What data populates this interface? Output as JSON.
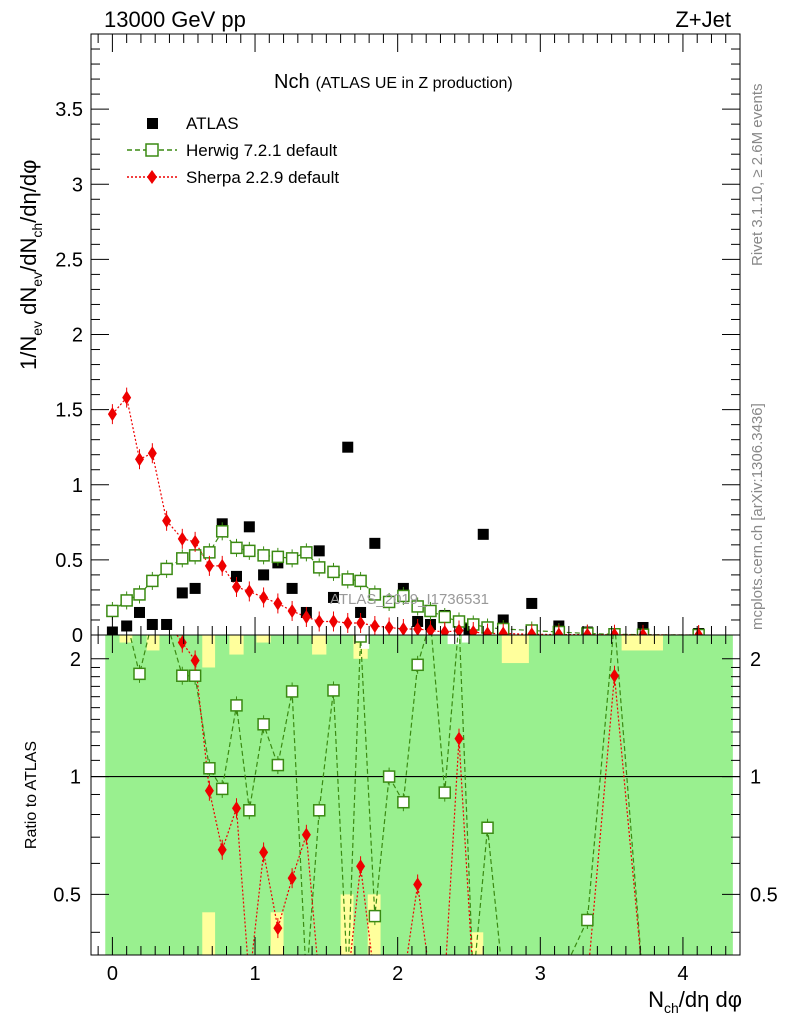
{
  "header": {
    "left": "13000 GeV pp",
    "right": "Z+Jet"
  },
  "side": {
    "rivet": "Rivet 3.1.10, ≥ 2.6M events",
    "mcplots": "mcplots.cern.ch [arXiv:1306.3436]"
  },
  "colors": {
    "atlas": "#000000",
    "herwig": "#3a8a12",
    "sherpa": "#ee0000",
    "band_green": "#99f08f",
    "band_yellow": "#ffff9c"
  },
  "chart_data": [
    {
      "type": "scatter",
      "title": "Nch",
      "subtitle": "(ATLAS UE in Z production)",
      "watermark": "ATLAS_2019_I1736531",
      "xlabel": "N_ch/dη dφ",
      "ylabel": "1/N_ev dN_ev/dN_ch/dη/dφ",
      "xlim": [
        -0.15,
        4.4
      ],
      "ylim": [
        0,
        4.0
      ],
      "yticks": [
        "0",
        "0.5",
        "1",
        "1.5",
        "2",
        "2.5",
        "3",
        "3.5"
      ],
      "xticks": [
        "0",
        "1",
        "2",
        "3",
        "4"
      ],
      "legend": [
        "ATLAS",
        "Herwig 7.2.1 default",
        "Sherpa 2.2.9 default"
      ],
      "series": [
        {
          "name": "ATLAS",
          "x": [
            0.0,
            0.1,
            0.19,
            0.28,
            0.38,
            0.49,
            0.58,
            0.68,
            0.77,
            0.87,
            0.96,
            1.06,
            1.16,
            1.26,
            1.36,
            1.45,
            1.55,
            1.65,
            1.74,
            1.84,
            1.94,
            2.04,
            2.14,
            2.23,
            2.33,
            2.5,
            2.6,
            2.74,
            2.94,
            3.13,
            3.33,
            3.52,
            3.72,
            4.11
          ],
          "values": [
            0.02,
            0.06,
            0.15,
            0.07,
            0.07,
            0.28,
            0.31,
            0.55,
            0.74,
            0.39,
            0.72,
            0.4,
            0.48,
            0.31,
            0.15,
            0.56,
            0.25,
            1.25,
            0.15,
            0.61,
            0.22,
            0.31,
            0.09,
            0.07,
            0.13,
            0.04,
            0.67,
            0.1,
            0.21,
            0.06,
            0.02,
            0.01,
            0.05,
            0.01
          ]
        },
        {
          "name": "Herwig 7.2.1 default",
          "x": [
            0.0,
            0.1,
            0.19,
            0.28,
            0.38,
            0.49,
            0.58,
            0.68,
            0.77,
            0.87,
            0.96,
            1.06,
            1.16,
            1.26,
            1.36,
            1.45,
            1.55,
            1.65,
            1.74,
            1.84,
            1.94,
            2.04,
            2.14,
            2.23,
            2.33,
            2.43,
            2.53,
            2.63,
            2.74,
            2.94,
            3.13,
            3.33,
            3.52,
            3.72,
            4.11
          ],
          "values": [
            0.16,
            0.23,
            0.27,
            0.36,
            0.44,
            0.51,
            0.53,
            0.55,
            0.69,
            0.58,
            0.56,
            0.53,
            0.52,
            0.51,
            0.55,
            0.45,
            0.42,
            0.37,
            0.36,
            0.27,
            0.22,
            0.26,
            0.19,
            0.16,
            0.12,
            0.09,
            0.07,
            0.05,
            0.04,
            0.03,
            0.02,
            0.01,
            0.005,
            0.002,
            0.0
          ]
        },
        {
          "name": "Sherpa 2.2.9 default",
          "x": [
            0.0,
            0.1,
            0.19,
            0.28,
            0.38,
            0.49,
            0.58,
            0.68,
            0.77,
            0.87,
            0.96,
            1.06,
            1.16,
            1.26,
            1.36,
            1.45,
            1.55,
            1.65,
            1.74,
            1.84,
            1.94,
            2.04,
            2.14,
            2.23,
            2.33,
            2.43,
            2.53,
            2.63,
            2.74,
            2.94,
            3.13,
            3.33,
            3.52,
            3.72,
            4.11
          ],
          "values": [
            1.47,
            1.58,
            1.17,
            1.21,
            0.76,
            0.64,
            0.62,
            0.46,
            0.46,
            0.32,
            0.29,
            0.25,
            0.21,
            0.16,
            0.12,
            0.09,
            0.09,
            0.08,
            0.08,
            0.06,
            0.05,
            0.04,
            0.04,
            0.03,
            0.02,
            0.03,
            0.02,
            0.01,
            0.01,
            0.005,
            0.003,
            0.002,
            0.002,
            0.001,
            0.0
          ]
        }
      ]
    },
    {
      "type": "scatter",
      "ylabel": "Ratio to ATLAS",
      "xlabel": "N_ch/dη dφ",
      "xlim": [
        -0.15,
        4.4
      ],
      "ylim": [
        0.35,
        2.3
      ],
      "yticks": [
        "0.5",
        "1",
        "2"
      ],
      "reference": 1,
      "series": [
        {
          "name": "Herwig 7.2.1 default",
          "x": [
            0.0,
            0.1,
            0.19,
            0.28,
            0.38,
            0.49,
            0.58,
            0.68,
            0.77,
            0.87,
            0.96,
            1.06,
            1.16,
            1.26,
            1.36,
            1.45,
            1.55,
            1.65,
            1.74,
            1.84,
            1.94,
            2.04,
            2.14,
            2.23,
            2.33,
            2.43,
            2.53,
            2.63,
            2.74,
            2.94,
            3.13,
            3.33,
            3.52,
            3.72,
            4.11
          ],
          "values": [
            null,
            null,
            1.83,
            null,
            null,
            1.81,
            1.81,
            1.05,
            0.93,
            1.52,
            0.82,
            1.36,
            1.07,
            1.65,
            null,
            0.82,
            1.66,
            null,
            2.28,
            0.44,
            1.0,
            0.86,
            1.93,
            null,
            0.91,
            null,
            null,
            0.74,
            null,
            null,
            null,
            0.43,
            null,
            null,
            null
          ]
        },
        {
          "name": "Sherpa 2.2.9 default",
          "x": [
            0.0,
            0.1,
            0.19,
            0.28,
            0.38,
            0.49,
            0.58,
            0.68,
            0.77,
            0.87,
            0.96,
            1.06,
            1.16,
            1.26,
            1.36,
            1.45,
            1.55,
            1.65,
            1.74,
            1.84,
            1.94,
            2.04,
            2.14,
            2.23,
            2.33,
            2.43,
            2.53,
            2.63,
            2.74,
            2.94,
            3.13,
            3.33,
            3.52,
            3.72,
            4.11
          ],
          "values": [
            null,
            null,
            null,
            null,
            null,
            2.2,
            1.98,
            0.92,
            0.65,
            0.83,
            null,
            0.64,
            0.41,
            0.55,
            0.71,
            null,
            null,
            null,
            0.59,
            null,
            null,
            null,
            0.53,
            null,
            null,
            1.25,
            null,
            null,
            null,
            null,
            null,
            null,
            1.81,
            null,
            null
          ]
        }
      ]
    }
  ]
}
